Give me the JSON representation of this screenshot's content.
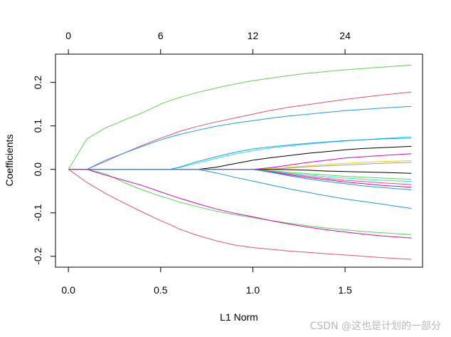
{
  "chart_data": {
    "type": "line",
    "title": "",
    "xlabel": "L1 Norm",
    "ylabel": "Coefficients",
    "xlim": [
      -0.07,
      1.92
    ],
    "ylim": [
      -0.225,
      0.265
    ],
    "grid": false,
    "legend": "none",
    "x_ticks": [
      "0.0",
      "0.5",
      "1.0",
      "1.5"
    ],
    "x_tick_values": [
      0,
      0.5,
      1.0,
      1.5
    ],
    "y_ticks": [
      "-0.2",
      "-0.1",
      "0.0",
      "0.1",
      "0.2"
    ],
    "y_tick_values": [
      -0.2,
      -0.1,
      0.0,
      0.1,
      0.2
    ],
    "top_axis_ticks": [
      "0",
      "6",
      "12",
      "24"
    ],
    "top_axis_tick_positions": [
      0,
      0.5,
      1.0,
      1.5
    ],
    "x": [
      0,
      0.1,
      0.2,
      0.3,
      0.4,
      0.5,
      0.55,
      0.6,
      0.7,
      0.8,
      0.9,
      1.0,
      1.1,
      1.2,
      1.3,
      1.4,
      1.5,
      1.6,
      1.7,
      1.86
    ],
    "series": [
      {
        "color": "#61D04F",
        "values": [
          0,
          0.07,
          0.095,
          0.113,
          0.13,
          0.15,
          0.158,
          0.165,
          0.177,
          0.187,
          0.196,
          0.204,
          0.21,
          0.216,
          0.221,
          0.225,
          0.229,
          0.232,
          0.235,
          0.24
        ]
      },
      {
        "color": "#DF536B",
        "values": [
          0,
          0,
          0.018,
          0.037,
          0.055,
          0.072,
          0.079,
          0.087,
          0.099,
          0.109,
          0.118,
          0.127,
          0.136,
          0.143,
          0.149,
          0.155,
          0.161,
          0.166,
          0.171,
          0.178
        ]
      },
      {
        "color": "#2297E6",
        "values": [
          0,
          0,
          0.021,
          0.037,
          0.053,
          0.068,
          0.074,
          0.08,
          0.09,
          0.099,
          0.106,
          0.112,
          0.118,
          0.123,
          0.127,
          0.131,
          0.135,
          0.138,
          0.141,
          0.145
        ]
      },
      {
        "color": "#28E2E5",
        "values": [
          0,
          0,
          0,
          0,
          0,
          0,
          0,
          0.004,
          0.015,
          0.025,
          0.035,
          0.043,
          0.049,
          0.054,
          0.058,
          0.062,
          0.065,
          0.068,
          0.071,
          0.075
        ]
      },
      {
        "color": "#2297E6",
        "values": [
          0,
          0,
          0,
          0,
          0,
          0,
          0,
          0.005,
          0.018,
          0.029,
          0.039,
          0.047,
          0.052,
          0.056,
          0.06,
          0.063,
          0.066,
          0.068,
          0.07,
          0.072
        ]
      },
      {
        "color": "#000000",
        "values": [
          0,
          0,
          0,
          0,
          0,
          0,
          0,
          0,
          0,
          0.005,
          0.013,
          0.021,
          0.027,
          0.032,
          0.037,
          0.041,
          0.045,
          0.048,
          0.05,
          0.053
        ]
      },
      {
        "color": "#CD0BBC",
        "values": [
          0,
          0,
          0,
          0,
          0,
          0,
          0,
          0,
          0,
          0,
          0,
          0,
          0.004,
          0.01,
          0.016,
          0.021,
          0.026,
          0.029,
          0.032,
          0.036
        ]
      },
      {
        "color": "#F5C710",
        "values": [
          0,
          0,
          0,
          0,
          0,
          0,
          0,
          0,
          0,
          0,
          0,
          0,
          0.002,
          0.005,
          0.008,
          0.011,
          0.014,
          0.016,
          0.018,
          0.02
        ]
      },
      {
        "color": "#9E9E9E",
        "values": [
          0,
          0,
          0,
          0,
          0,
          0,
          0,
          0,
          0,
          0,
          0,
          0,
          0,
          0.003,
          0.006,
          0.008,
          0.01,
          0.012,
          0.014,
          0.016
        ]
      },
      {
        "color": "#000000",
        "values": [
          0,
          0,
          0,
          0,
          0,
          0,
          0,
          0,
          0,
          0,
          0,
          0,
          0,
          -0.001,
          -0.002,
          -0.004,
          -0.005,
          -0.006,
          -0.007,
          -0.009
        ]
      },
      {
        "color": "#61D04F",
        "values": [
          0,
          0,
          0,
          0,
          0,
          0,
          0,
          0,
          0,
          0,
          0,
          0,
          -0.003,
          -0.007,
          -0.01,
          -0.013,
          -0.016,
          -0.018,
          -0.02,
          -0.023
        ]
      },
      {
        "color": "#28E2E5",
        "values": [
          0,
          0,
          0,
          0,
          0,
          0,
          0,
          0,
          0,
          0,
          0,
          0,
          -0.004,
          -0.009,
          -0.013,
          -0.017,
          -0.02,
          -0.023,
          -0.025,
          -0.028
        ]
      },
      {
        "color": "#DF536B",
        "values": [
          0,
          0,
          0,
          0,
          0,
          0,
          0,
          0,
          0,
          0,
          0,
          0,
          -0.005,
          -0.011,
          -0.016,
          -0.021,
          -0.025,
          -0.028,
          -0.031,
          -0.035
        ]
      },
      {
        "color": "#CD0BBC",
        "values": [
          0,
          0,
          0,
          0,
          0,
          0,
          0,
          0,
          0,
          0,
          0,
          0,
          -0.006,
          -0.013,
          -0.019,
          -0.024,
          -0.029,
          -0.033,
          -0.037,
          -0.041
        ]
      },
      {
        "color": "#2297E6",
        "values": [
          0,
          0,
          0,
          0,
          0,
          0,
          0,
          0,
          0,
          0,
          0,
          0,
          -0.007,
          -0.015,
          -0.022,
          -0.028,
          -0.033,
          -0.038,
          -0.042,
          -0.047
        ]
      },
      {
        "color": "#2297E6",
        "values": [
          0,
          0,
          0,
          0,
          0,
          0,
          0,
          0,
          0,
          -0.008,
          -0.018,
          -0.027,
          -0.036,
          -0.045,
          -0.053,
          -0.061,
          -0.068,
          -0.074,
          -0.08,
          -0.09
        ]
      },
      {
        "color": "#61D04F",
        "values": [
          0,
          0,
          -0.01,
          -0.03,
          -0.047,
          -0.062,
          -0.068,
          -0.075,
          -0.086,
          -0.096,
          -0.104,
          -0.111,
          -0.118,
          -0.124,
          -0.13,
          -0.135,
          -0.139,
          -0.143,
          -0.146,
          -0.15
        ]
      },
      {
        "color": "#CD0BBC",
        "values": [
          0,
          0,
          -0.013,
          -0.025,
          -0.037,
          -0.052,
          -0.059,
          -0.066,
          -0.079,
          -0.091,
          -0.101,
          -0.109,
          -0.118,
          -0.126,
          -0.133,
          -0.139,
          -0.144,
          -0.149,
          -0.153,
          -0.158
        ]
      },
      {
        "color": "#DF536B",
        "values": [
          0,
          -0.03,
          -0.055,
          -0.077,
          -0.098,
          -0.118,
          -0.127,
          -0.137,
          -0.152,
          -0.164,
          -0.174,
          -0.18,
          -0.184,
          -0.188,
          -0.191,
          -0.194,
          -0.197,
          -0.2,
          -0.203,
          -0.207
        ]
      }
    ]
  },
  "watermark": "CSDN @这也是计划的一部分"
}
